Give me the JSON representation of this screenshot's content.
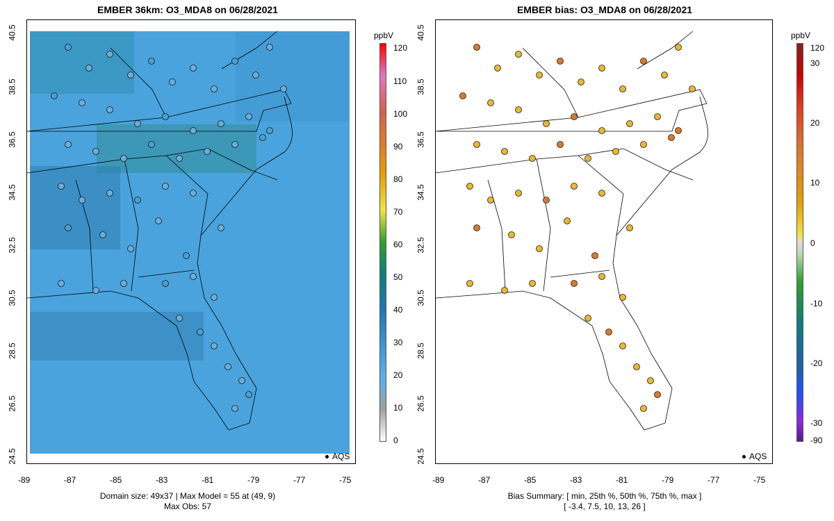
{
  "left_panel": {
    "title": "EMBER 36km: O3_MDA8 on 06/28/2021",
    "x_ticks": [
      "-89",
      "-87",
      "-85",
      "-83",
      "-81",
      "-79",
      "-77",
      "-75"
    ],
    "y_ticks": [
      "40.5",
      "38.5",
      "36.5",
      "34.5",
      "32.5",
      "30.5",
      "28.5",
      "26.5",
      "24.5"
    ],
    "legend_label": "AQS",
    "caption_line1": "Domain size: 49x37 | Max Model = 55 at (49, 9)",
    "caption_line2": "Max Obs: 57",
    "colorbar_unit": "ppbV",
    "colorbar_ticks": [
      "0",
      "10",
      "20",
      "30",
      "40",
      "50",
      "60",
      "70",
      "80",
      "90",
      "100",
      "110",
      "120"
    ],
    "colors": {
      "land_fill": "#4aa3dc",
      "ocean_fill": "#56a9de",
      "hotspot": "#2f8a8a"
    }
  },
  "right_panel": {
    "title": "EMBER bias: O3_MDA8 on 06/28/2021",
    "x_ticks": [
      "-89",
      "-87",
      "-85",
      "-83",
      "-81",
      "-79",
      "-77",
      "-75"
    ],
    "y_ticks": [
      "40.5",
      "38.5",
      "36.5",
      "34.5",
      "32.5",
      "30.5",
      "28.5",
      "26.5",
      "24.5"
    ],
    "legend_label": "AQS",
    "caption_line1": "Bias Summary: [ min, 25th %, 50th %, 75th %, max ]",
    "caption_line2": "[ -3.4,   7.5,   10,   13,   26 ]",
    "colorbar_unit": "ppbV",
    "colorbar_ticks": [
      "120",
      "30",
      "20",
      "10",
      "0",
      "-10",
      "-20",
      "-30",
      "-90"
    ],
    "colors": {
      "marker_main": "#e8b830",
      "marker_high": "#d87a2a"
    }
  }
}
